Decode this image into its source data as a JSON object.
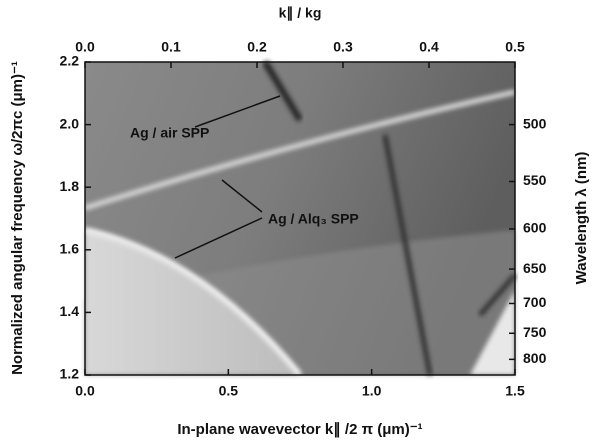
{
  "chart_data": {
    "type": "heatmap",
    "xlabel": "In-plane wavevector k∥ /2 π (μm)⁻¹",
    "ylabel": "Normalized angular frequency ω/2πc (μm)⁻¹",
    "x2label": "k∥ / kg",
    "y2label": "Wavelength λ (nm)",
    "xlim": [
      0,
      1.5
    ],
    "xticks": [
      {
        "value": 0,
        "label": "0.0"
      },
      0.5,
      {
        "value": 1,
        "label": "1.0"
      },
      1.5
    ],
    "x2lim": [
      0,
      0.5
    ],
    "x2ticks": [
      {
        "value": 0,
        "label": "0.0"
      },
      0.1,
      0.2,
      0.3,
      0.4,
      0.5
    ],
    "ylim": [
      1.2,
      2.2
    ],
    "yticks": [
      1.2,
      1.4,
      1.6,
      1.8,
      {
        "value": 2,
        "label": "2.0"
      },
      2.2
    ],
    "y2scale": "reciprocal",
    "y2ticks": [
      500,
      550,
      600,
      650,
      700,
      750,
      800
    ],
    "annotations": [
      "Ag / air SPP",
      "Ag / Alq₃ SPP"
    ]
  }
}
